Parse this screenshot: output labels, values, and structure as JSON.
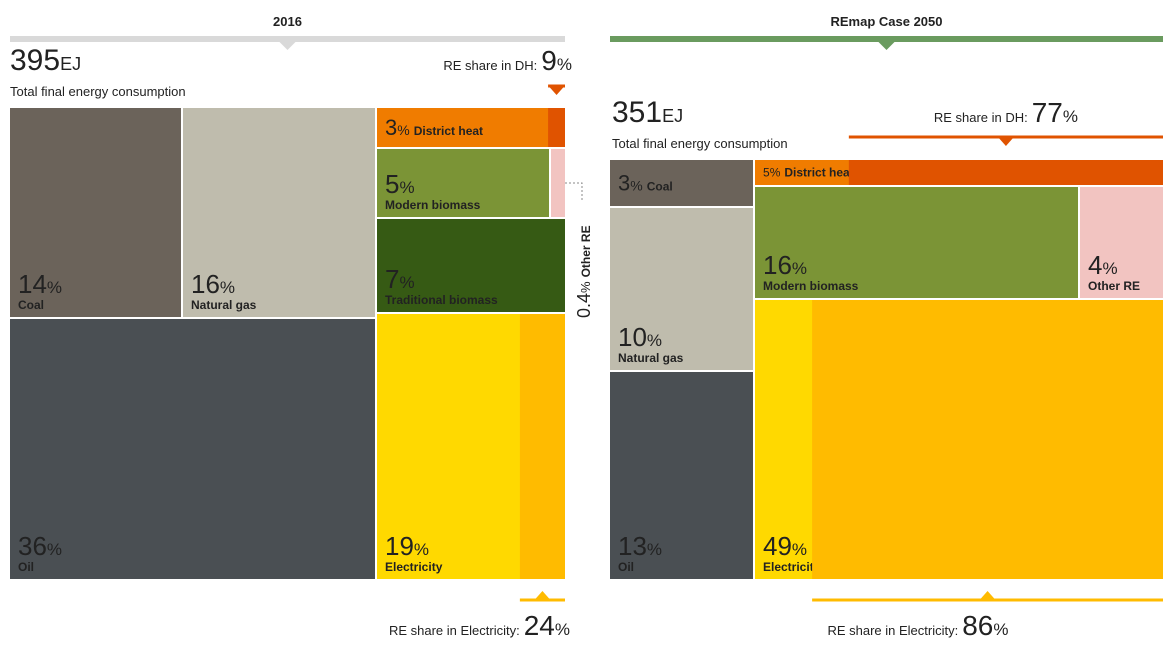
{
  "chart_data": [
    {
      "type": "treemap",
      "title": "2016",
      "total": 395,
      "total_unit": "EJ",
      "total_label": "Total final energy consumption",
      "unit": "%",
      "categories": [
        "Coal",
        "Natural gas",
        "Oil",
        "District heat",
        "Modern biomass",
        "Other RE",
        "Traditional biomass",
        "Electricity"
      ],
      "values": [
        14,
        16,
        36,
        3,
        5,
        0.4,
        7,
        19
      ],
      "colors": [
        "#6b635a",
        "#bfbcad",
        "#4a4f53",
        "#f07c00",
        "#7b9436",
        "#f2c4c1",
        "#365a14",
        "#ffd900"
      ],
      "header_color": "#d9d9d9",
      "re_share_dh": {
        "label": "RE share in DH:",
        "value": 9,
        "color": "#e05300"
      },
      "re_share_electricity": {
        "label": "RE share in Electricity:",
        "value": 24,
        "color": "#ffbb00"
      }
    },
    {
      "type": "treemap",
      "title": "REmap Case 2050",
      "total": 351,
      "total_unit": "EJ",
      "total_label": "Total final energy consumption",
      "unit": "%",
      "categories": [
        "Coal",
        "Natural gas",
        "Oil",
        "District heat",
        "Modern biomass",
        "Other RE",
        "Electricity"
      ],
      "values": [
        3,
        10,
        13,
        5,
        16,
        4,
        49
      ],
      "colors": [
        "#6b635a",
        "#bfbcad",
        "#4a4f53",
        "#f07c00",
        "#7b9436",
        "#f2c4c1",
        "#ffd900"
      ],
      "header_color": "#6a9b5f",
      "re_share_dh": {
        "label": "RE share in DH:",
        "value": 77,
        "color": "#e05300"
      },
      "re_share_electricity": {
        "label": "RE share in Electricity:",
        "value": 86,
        "color": "#ffbb00"
      }
    }
  ]
}
